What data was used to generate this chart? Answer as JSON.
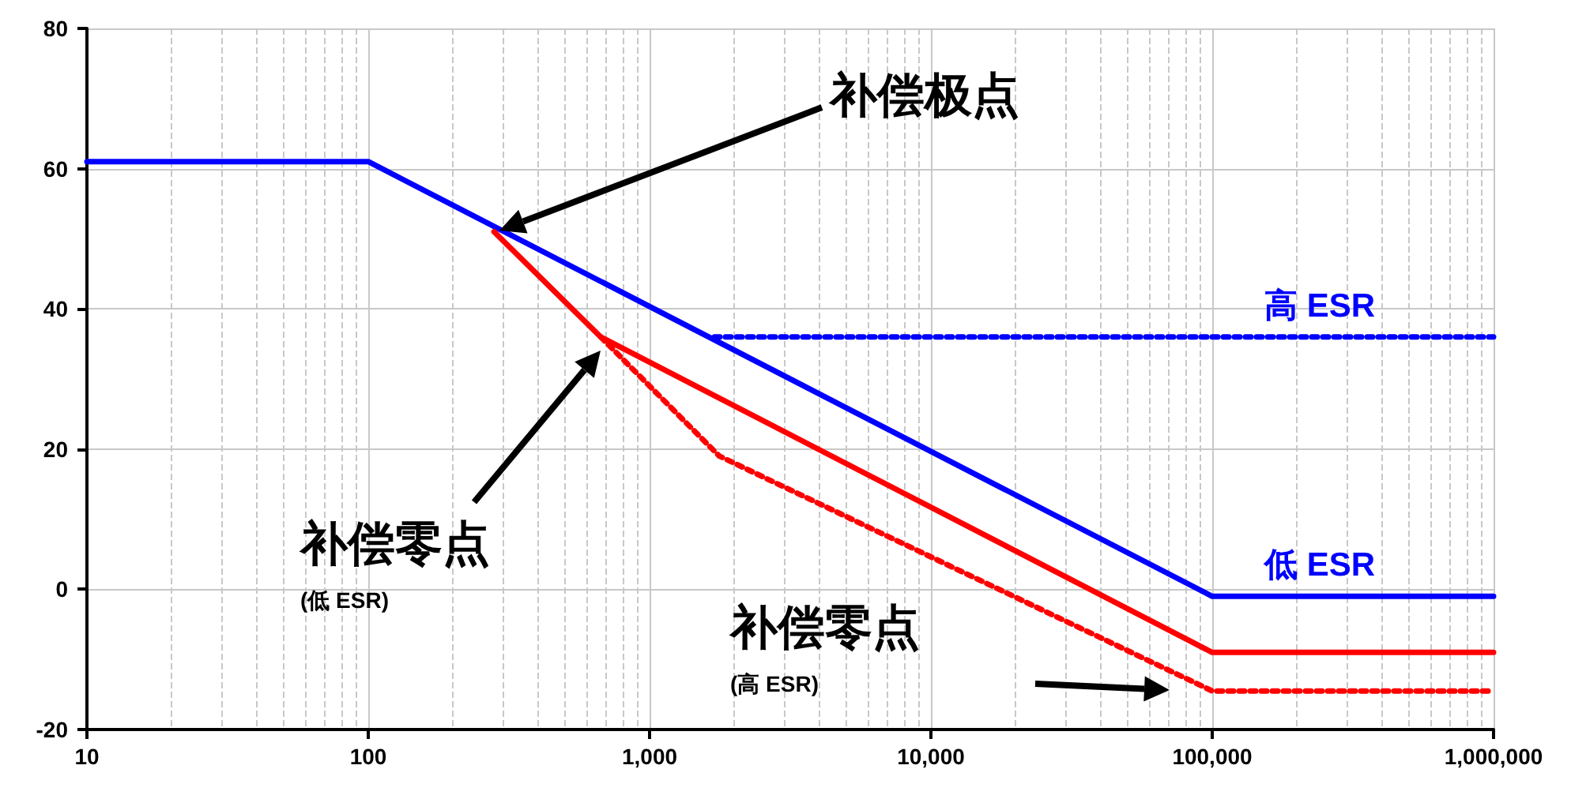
{
  "chart_data": {
    "type": "line",
    "log": "x",
    "xlim": [
      10,
      1000000
    ],
    "ylim": [
      -20,
      80
    ],
    "xticks": [
      10,
      100,
      {
        "value": 1000,
        "label": "1,000"
      },
      {
        "value": 10000,
        "label": "10,000"
      },
      {
        "value": 100000,
        "label": "100,000"
      },
      {
        "value": 1000000,
        "label": "1,000,000"
      }
    ],
    "yticks": [
      -20,
      0,
      20,
      40,
      60,
      80
    ],
    "grid": true,
    "legend": false,
    "marker": "none",
    "series": [
      {
        "name": "低 ESR",
        "color": "#0000ff",
        "line_style": "solid",
        "x": [
          10,
          100,
          100000,
          1000000
        ],
        "values": [
          61,
          61,
          -1,
          -1
        ]
      },
      {
        "name": "高 ESR",
        "color": "#0000ff",
        "line_style": "dotted",
        "x": [
          1700,
          1000000
        ],
        "values": [
          36,
          36
        ]
      },
      {
        "color": "#ff0000",
        "line_style": "solid",
        "x": [
          280,
          670,
          100000,
          1000000
        ],
        "values": [
          51,
          36,
          -9,
          -9
        ]
      },
      {
        "color": "#ff0000",
        "line_style": "dotted",
        "x": [
          670,
          1770,
          100000,
          1000000
        ],
        "values": [
          36,
          19,
          -14.5,
          -14.5
        ]
      }
    ],
    "annotations": [
      "补偿极点",
      "补偿零点\n(低 ESR)",
      "补偿零点\n(高 ESR)"
    ]
  }
}
